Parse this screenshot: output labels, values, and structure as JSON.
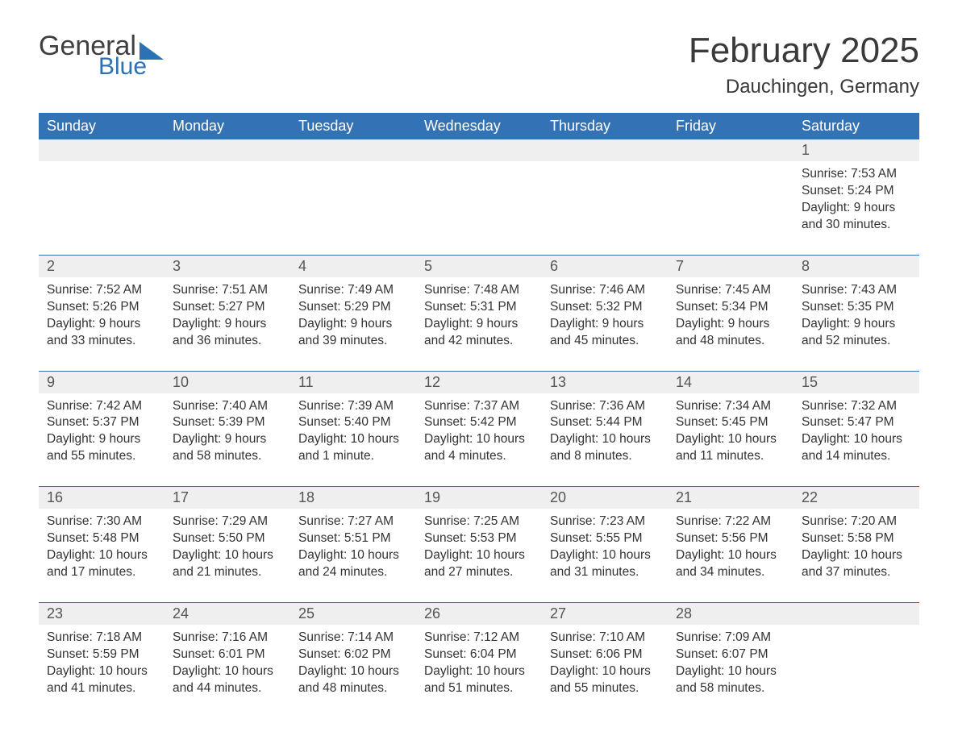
{
  "logo": {
    "word1": "General",
    "word2": "Blue",
    "color_general": "#3f3f3f",
    "color_blue": "#2a72b5",
    "flag_color": "#2a72b5"
  },
  "title": "February 2025",
  "location": "Dauchingen, Germany",
  "colors": {
    "header_bg": "#3373b5",
    "header_text": "#ffffff",
    "daynum_bg": "#efefef",
    "text": "#333333",
    "rule": "#3373b5"
  },
  "days_of_week": [
    "Sunday",
    "Monday",
    "Tuesday",
    "Wednesday",
    "Thursday",
    "Friday",
    "Saturday"
  ],
  "weeks": [
    [
      null,
      null,
      null,
      null,
      null,
      null,
      {
        "n": "1",
        "sunrise": "Sunrise: 7:53 AM",
        "sunset": "Sunset: 5:24 PM",
        "dl1": "Daylight: 9 hours",
        "dl2": "and 30 minutes."
      }
    ],
    [
      {
        "n": "2",
        "sunrise": "Sunrise: 7:52 AM",
        "sunset": "Sunset: 5:26 PM",
        "dl1": "Daylight: 9 hours",
        "dl2": "and 33 minutes."
      },
      {
        "n": "3",
        "sunrise": "Sunrise: 7:51 AM",
        "sunset": "Sunset: 5:27 PM",
        "dl1": "Daylight: 9 hours",
        "dl2": "and 36 minutes."
      },
      {
        "n": "4",
        "sunrise": "Sunrise: 7:49 AM",
        "sunset": "Sunset: 5:29 PM",
        "dl1": "Daylight: 9 hours",
        "dl2": "and 39 minutes."
      },
      {
        "n": "5",
        "sunrise": "Sunrise: 7:48 AM",
        "sunset": "Sunset: 5:31 PM",
        "dl1": "Daylight: 9 hours",
        "dl2": "and 42 minutes."
      },
      {
        "n": "6",
        "sunrise": "Sunrise: 7:46 AM",
        "sunset": "Sunset: 5:32 PM",
        "dl1": "Daylight: 9 hours",
        "dl2": "and 45 minutes."
      },
      {
        "n": "7",
        "sunrise": "Sunrise: 7:45 AM",
        "sunset": "Sunset: 5:34 PM",
        "dl1": "Daylight: 9 hours",
        "dl2": "and 48 minutes."
      },
      {
        "n": "8",
        "sunrise": "Sunrise: 7:43 AM",
        "sunset": "Sunset: 5:35 PM",
        "dl1": "Daylight: 9 hours",
        "dl2": "and 52 minutes."
      }
    ],
    [
      {
        "n": "9",
        "sunrise": "Sunrise: 7:42 AM",
        "sunset": "Sunset: 5:37 PM",
        "dl1": "Daylight: 9 hours",
        "dl2": "and 55 minutes."
      },
      {
        "n": "10",
        "sunrise": "Sunrise: 7:40 AM",
        "sunset": "Sunset: 5:39 PM",
        "dl1": "Daylight: 9 hours",
        "dl2": "and 58 minutes."
      },
      {
        "n": "11",
        "sunrise": "Sunrise: 7:39 AM",
        "sunset": "Sunset: 5:40 PM",
        "dl1": "Daylight: 10 hours",
        "dl2": "and 1 minute."
      },
      {
        "n": "12",
        "sunrise": "Sunrise: 7:37 AM",
        "sunset": "Sunset: 5:42 PM",
        "dl1": "Daylight: 10 hours",
        "dl2": "and 4 minutes."
      },
      {
        "n": "13",
        "sunrise": "Sunrise: 7:36 AM",
        "sunset": "Sunset: 5:44 PM",
        "dl1": "Daylight: 10 hours",
        "dl2": "and 8 minutes."
      },
      {
        "n": "14",
        "sunrise": "Sunrise: 7:34 AM",
        "sunset": "Sunset: 5:45 PM",
        "dl1": "Daylight: 10 hours",
        "dl2": "and 11 minutes."
      },
      {
        "n": "15",
        "sunrise": "Sunrise: 7:32 AM",
        "sunset": "Sunset: 5:47 PM",
        "dl1": "Daylight: 10 hours",
        "dl2": "and 14 minutes."
      }
    ],
    [
      {
        "n": "16",
        "sunrise": "Sunrise: 7:30 AM",
        "sunset": "Sunset: 5:48 PM",
        "dl1": "Daylight: 10 hours",
        "dl2": "and 17 minutes."
      },
      {
        "n": "17",
        "sunrise": "Sunrise: 7:29 AM",
        "sunset": "Sunset: 5:50 PM",
        "dl1": "Daylight: 10 hours",
        "dl2": "and 21 minutes."
      },
      {
        "n": "18",
        "sunrise": "Sunrise: 7:27 AM",
        "sunset": "Sunset: 5:51 PM",
        "dl1": "Daylight: 10 hours",
        "dl2": "and 24 minutes."
      },
      {
        "n": "19",
        "sunrise": "Sunrise: 7:25 AM",
        "sunset": "Sunset: 5:53 PM",
        "dl1": "Daylight: 10 hours",
        "dl2": "and 27 minutes."
      },
      {
        "n": "20",
        "sunrise": "Sunrise: 7:23 AM",
        "sunset": "Sunset: 5:55 PM",
        "dl1": "Daylight: 10 hours",
        "dl2": "and 31 minutes."
      },
      {
        "n": "21",
        "sunrise": "Sunrise: 7:22 AM",
        "sunset": "Sunset: 5:56 PM",
        "dl1": "Daylight: 10 hours",
        "dl2": "and 34 minutes."
      },
      {
        "n": "22",
        "sunrise": "Sunrise: 7:20 AM",
        "sunset": "Sunset: 5:58 PM",
        "dl1": "Daylight: 10 hours",
        "dl2": "and 37 minutes."
      }
    ],
    [
      {
        "n": "23",
        "sunrise": "Sunrise: 7:18 AM",
        "sunset": "Sunset: 5:59 PM",
        "dl1": "Daylight: 10 hours",
        "dl2": "and 41 minutes."
      },
      {
        "n": "24",
        "sunrise": "Sunrise: 7:16 AM",
        "sunset": "Sunset: 6:01 PM",
        "dl1": "Daylight: 10 hours",
        "dl2": "and 44 minutes."
      },
      {
        "n": "25",
        "sunrise": "Sunrise: 7:14 AM",
        "sunset": "Sunset: 6:02 PM",
        "dl1": "Daylight: 10 hours",
        "dl2": "and 48 minutes."
      },
      {
        "n": "26",
        "sunrise": "Sunrise: 7:12 AM",
        "sunset": "Sunset: 6:04 PM",
        "dl1": "Daylight: 10 hours",
        "dl2": "and 51 minutes."
      },
      {
        "n": "27",
        "sunrise": "Sunrise: 7:10 AM",
        "sunset": "Sunset: 6:06 PM",
        "dl1": "Daylight: 10 hours",
        "dl2": "and 55 minutes."
      },
      {
        "n": "28",
        "sunrise": "Sunrise: 7:09 AM",
        "sunset": "Sunset: 6:07 PM",
        "dl1": "Daylight: 10 hours",
        "dl2": "and 58 minutes."
      },
      null
    ]
  ]
}
